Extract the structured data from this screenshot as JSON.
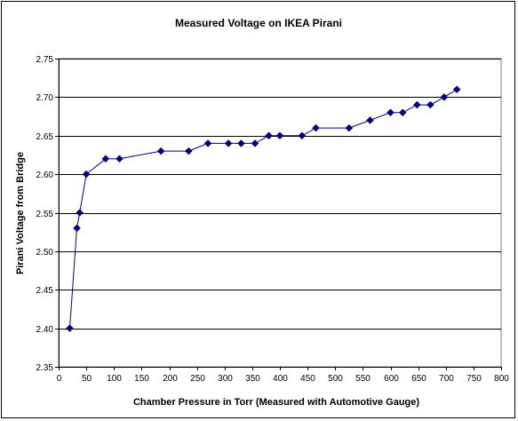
{
  "chart_data": {
    "type": "scatter",
    "title": "Measured Voltage on IKEA Pirani",
    "xlabel": "Chamber Pressure in Torr (Measured with Automotive Gauge)",
    "ylabel": "Pirani Voltage from Bridge",
    "xlim": [
      0,
      800
    ],
    "ylim": [
      2.35,
      2.75
    ],
    "xticks": [
      0,
      50,
      100,
      150,
      200,
      250,
      300,
      350,
      400,
      450,
      500,
      550,
      600,
      650,
      700,
      750,
      800
    ],
    "yticks": [
      "2.35",
      "2.40",
      "2.45",
      "2.50",
      "2.55",
      "2.60",
      "2.65",
      "2.70",
      "2.75"
    ],
    "grid": "horizontal",
    "legend": "none",
    "marker": "diamond",
    "line": true,
    "colors": {
      "series": "#000080",
      "grid": "#000000",
      "plot_bg": "#ffffff"
    },
    "series": [
      {
        "x": [
          20,
          33,
          38,
          50,
          85,
          110,
          185,
          235,
          270,
          307,
          330,
          355,
          380,
          400,
          440,
          465,
          525,
          563,
          600,
          622,
          648,
          672,
          697,
          720
        ],
        "y": [
          2.4,
          2.53,
          2.55,
          2.6,
          2.62,
          2.62,
          2.63,
          2.63,
          2.64,
          2.64,
          2.64,
          2.64,
          2.65,
          2.65,
          2.65,
          2.66,
          2.66,
          2.67,
          2.68,
          2.68,
          2.69,
          2.69,
          2.7,
          2.71
        ]
      }
    ]
  }
}
